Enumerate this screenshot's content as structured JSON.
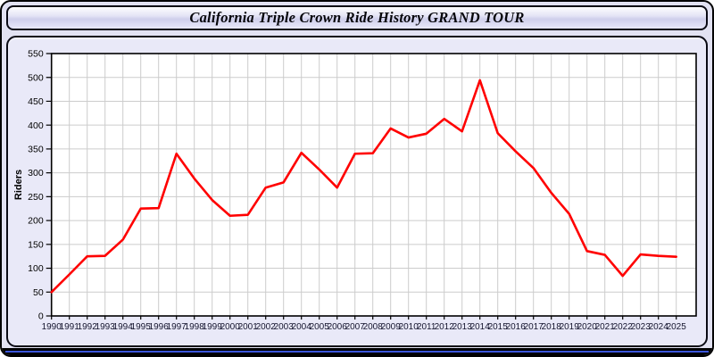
{
  "window": {
    "title": "California Triple Crown Ride History GRAND TOUR",
    "panel_bg": "#e9e9f8",
    "frame_color": "#000000",
    "bottom_edge_accent": "#3a55d9"
  },
  "chart_data": {
    "type": "line",
    "title": "California Triple Crown Ride History GRAND TOUR",
    "xlabel": "",
    "ylabel": "Riders",
    "x": [
      1990,
      1991,
      1992,
      1993,
      1994,
      1995,
      1996,
      1997,
      1998,
      1999,
      2000,
      2001,
      2002,
      2003,
      2004,
      2005,
      2006,
      2007,
      2008,
      2009,
      2010,
      2011,
      2012,
      2013,
      2014,
      2015,
      2016,
      2017,
      2018,
      2019,
      2020,
      2021,
      2022,
      2023,
      2024,
      2025
    ],
    "values": [
      50,
      87,
      125,
      126,
      160,
      225,
      226,
      340,
      288,
      243,
      210,
      212,
      269,
      280,
      342,
      307,
      269,
      340,
      341,
      393,
      374,
      382,
      413,
      387,
      494,
      383,
      345,
      310,
      258,
      214,
      136,
      128,
      84,
      129,
      126,
      124
    ],
    "ylim": [
      0,
      550
    ],
    "ytick_step": 50,
    "grid": true,
    "legend_position": "none",
    "line_color": "#ff0000",
    "grid_color": "#cccccc",
    "plot_bg": "#ffffff",
    "axis_color": "#000000",
    "x_tick_label_color": "#15152e",
    "y_tick_label_color": "#000000"
  }
}
